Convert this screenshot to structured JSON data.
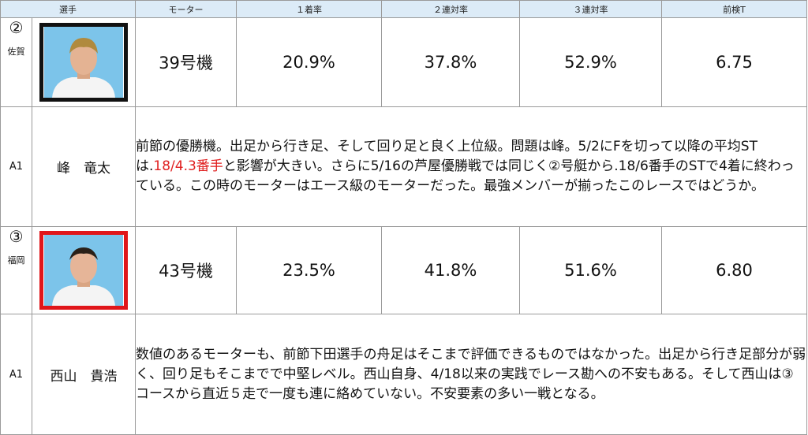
{
  "headers": [
    "選手",
    "モーター",
    "１着率",
    "２連対率",
    "３連対率",
    "前検T"
  ],
  "racers": [
    {
      "lane": "②",
      "prefecture": "佐賀",
      "rank": "A1",
      "name": "峰　竜太",
      "frame_color": "#111111",
      "motor": "39号機",
      "win_rate": "20.9%",
      "quinella_rate": "37.8%",
      "trio_rate": "52.9%",
      "pre_time": "6.75",
      "comment_before": "前節の優勝機。出足から行き足、そして回り足と良く上位級。問題は峰。5/2にFを切って以降の平均STは.",
      "comment_highlight": "18/4.3番手",
      "comment_after": "と影響が大きい。さらに5/16の芦屋優勝戦では同じく②号艇から.18/6番手のSTで4着に終わっている。この時のモーターはエース級のモーターだった。最強メンバーが揃ったこのレースではどうか。"
    },
    {
      "lane": "③",
      "prefecture": "福岡",
      "rank": "A1",
      "name": "西山　貴浩",
      "frame_color": "#e0161a",
      "motor": "43号機",
      "win_rate": "23.5%",
      "quinella_rate": "41.8%",
      "trio_rate": "51.6%",
      "pre_time": "6.80",
      "comment": "数値のあるモーターも、前節下田選手の舟足はそこまで評価できるものではなかった。出足から行き足部分が弱く、回り足もそこまでで中堅レベル。西山自身、4/18以来の実践でレース勘への不安もある。そして西山は③コースから直近５走で一度も連に絡めていない。不安要素の多い一戦となる。"
    }
  ]
}
